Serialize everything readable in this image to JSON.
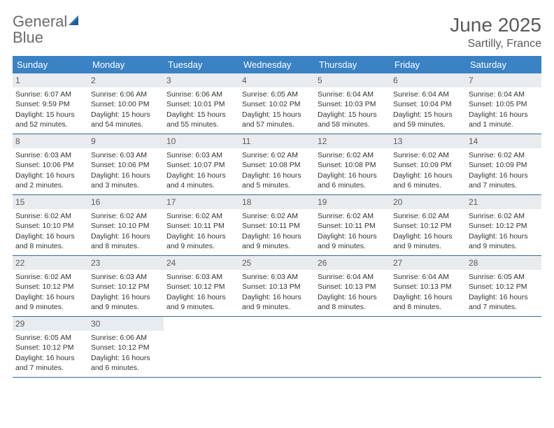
{
  "logo": {
    "text1": "General",
    "text2": "Blue"
  },
  "title": "June 2025",
  "location": "Sartilly, France",
  "colors": {
    "header_bg": "#3a82c4",
    "header_text": "#ffffff",
    "daynum_bg": "#e9ecef",
    "border": "#3a6a9a",
    "logo_gray": "#6b6b6b",
    "logo_blue": "#3a7bbf"
  },
  "weekdays": [
    "Sunday",
    "Monday",
    "Tuesday",
    "Wednesday",
    "Thursday",
    "Friday",
    "Saturday"
  ],
  "weeks": [
    [
      {
        "n": "1",
        "sr": "Sunrise: 6:07 AM",
        "ss": "Sunset: 9:59 PM",
        "dl": "Daylight: 15 hours and 52 minutes."
      },
      {
        "n": "2",
        "sr": "Sunrise: 6:06 AM",
        "ss": "Sunset: 10:00 PM",
        "dl": "Daylight: 15 hours and 54 minutes."
      },
      {
        "n": "3",
        "sr": "Sunrise: 6:06 AM",
        "ss": "Sunset: 10:01 PM",
        "dl": "Daylight: 15 hours and 55 minutes."
      },
      {
        "n": "4",
        "sr": "Sunrise: 6:05 AM",
        "ss": "Sunset: 10:02 PM",
        "dl": "Daylight: 15 hours and 57 minutes."
      },
      {
        "n": "5",
        "sr": "Sunrise: 6:04 AM",
        "ss": "Sunset: 10:03 PM",
        "dl": "Daylight: 15 hours and 58 minutes."
      },
      {
        "n": "6",
        "sr": "Sunrise: 6:04 AM",
        "ss": "Sunset: 10:04 PM",
        "dl": "Daylight: 15 hours and 59 minutes."
      },
      {
        "n": "7",
        "sr": "Sunrise: 6:04 AM",
        "ss": "Sunset: 10:05 PM",
        "dl": "Daylight: 16 hours and 1 minute."
      }
    ],
    [
      {
        "n": "8",
        "sr": "Sunrise: 6:03 AM",
        "ss": "Sunset: 10:06 PM",
        "dl": "Daylight: 16 hours and 2 minutes."
      },
      {
        "n": "9",
        "sr": "Sunrise: 6:03 AM",
        "ss": "Sunset: 10:06 PM",
        "dl": "Daylight: 16 hours and 3 minutes."
      },
      {
        "n": "10",
        "sr": "Sunrise: 6:03 AM",
        "ss": "Sunset: 10:07 PM",
        "dl": "Daylight: 16 hours and 4 minutes."
      },
      {
        "n": "11",
        "sr": "Sunrise: 6:02 AM",
        "ss": "Sunset: 10:08 PM",
        "dl": "Daylight: 16 hours and 5 minutes."
      },
      {
        "n": "12",
        "sr": "Sunrise: 6:02 AM",
        "ss": "Sunset: 10:08 PM",
        "dl": "Daylight: 16 hours and 6 minutes."
      },
      {
        "n": "13",
        "sr": "Sunrise: 6:02 AM",
        "ss": "Sunset: 10:09 PM",
        "dl": "Daylight: 16 hours and 6 minutes."
      },
      {
        "n": "14",
        "sr": "Sunrise: 6:02 AM",
        "ss": "Sunset: 10:09 PM",
        "dl": "Daylight: 16 hours and 7 minutes."
      }
    ],
    [
      {
        "n": "15",
        "sr": "Sunrise: 6:02 AM",
        "ss": "Sunset: 10:10 PM",
        "dl": "Daylight: 16 hours and 8 minutes."
      },
      {
        "n": "16",
        "sr": "Sunrise: 6:02 AM",
        "ss": "Sunset: 10:10 PM",
        "dl": "Daylight: 16 hours and 8 minutes."
      },
      {
        "n": "17",
        "sr": "Sunrise: 6:02 AM",
        "ss": "Sunset: 10:11 PM",
        "dl": "Daylight: 16 hours and 9 minutes."
      },
      {
        "n": "18",
        "sr": "Sunrise: 6:02 AM",
        "ss": "Sunset: 10:11 PM",
        "dl": "Daylight: 16 hours and 9 minutes."
      },
      {
        "n": "19",
        "sr": "Sunrise: 6:02 AM",
        "ss": "Sunset: 10:11 PM",
        "dl": "Daylight: 16 hours and 9 minutes."
      },
      {
        "n": "20",
        "sr": "Sunrise: 6:02 AM",
        "ss": "Sunset: 10:12 PM",
        "dl": "Daylight: 16 hours and 9 minutes."
      },
      {
        "n": "21",
        "sr": "Sunrise: 6:02 AM",
        "ss": "Sunset: 10:12 PM",
        "dl": "Daylight: 16 hours and 9 minutes."
      }
    ],
    [
      {
        "n": "22",
        "sr": "Sunrise: 6:02 AM",
        "ss": "Sunset: 10:12 PM",
        "dl": "Daylight: 16 hours and 9 minutes."
      },
      {
        "n": "23",
        "sr": "Sunrise: 6:03 AM",
        "ss": "Sunset: 10:12 PM",
        "dl": "Daylight: 16 hours and 9 minutes."
      },
      {
        "n": "24",
        "sr": "Sunrise: 6:03 AM",
        "ss": "Sunset: 10:12 PM",
        "dl": "Daylight: 16 hours and 9 minutes."
      },
      {
        "n": "25",
        "sr": "Sunrise: 6:03 AM",
        "ss": "Sunset: 10:13 PM",
        "dl": "Daylight: 16 hours and 9 minutes."
      },
      {
        "n": "26",
        "sr": "Sunrise: 6:04 AM",
        "ss": "Sunset: 10:13 PM",
        "dl": "Daylight: 16 hours and 8 minutes."
      },
      {
        "n": "27",
        "sr": "Sunrise: 6:04 AM",
        "ss": "Sunset: 10:13 PM",
        "dl": "Daylight: 16 hours and 8 minutes."
      },
      {
        "n": "28",
        "sr": "Sunrise: 6:05 AM",
        "ss": "Sunset: 10:12 PM",
        "dl": "Daylight: 16 hours and 7 minutes."
      }
    ],
    [
      {
        "n": "29",
        "sr": "Sunrise: 6:05 AM",
        "ss": "Sunset: 10:12 PM",
        "dl": "Daylight: 16 hours and 7 minutes."
      },
      {
        "n": "30",
        "sr": "Sunrise: 6:06 AM",
        "ss": "Sunset: 10:12 PM",
        "dl": "Daylight: 16 hours and 6 minutes."
      },
      null,
      null,
      null,
      null,
      null
    ]
  ]
}
